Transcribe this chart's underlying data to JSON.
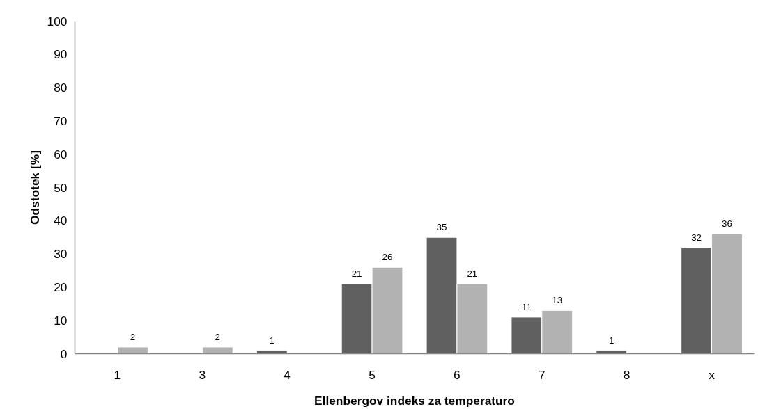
{
  "chart_data": {
    "type": "bar",
    "xlabel": "Ellenbergov indeks za temperaturo",
    "ylabel": "Odstotek [%]",
    "categories": [
      "1",
      "3",
      "4",
      "5",
      "6",
      "7",
      "8",
      "x"
    ],
    "series": [
      {
        "color": "#606060",
        "values": [
          null,
          null,
          1,
          21,
          35,
          11,
          1,
          32
        ]
      },
      {
        "color": "#b2b2b2",
        "values": [
          2,
          2,
          null,
          26,
          21,
          13,
          null,
          36
        ]
      }
    ],
    "data_labels": true,
    "ylim": [
      0,
      100
    ],
    "yticks": [
      0,
      10,
      20,
      30,
      40,
      50,
      60,
      70,
      80,
      90,
      100
    ],
    "grid": false
  }
}
